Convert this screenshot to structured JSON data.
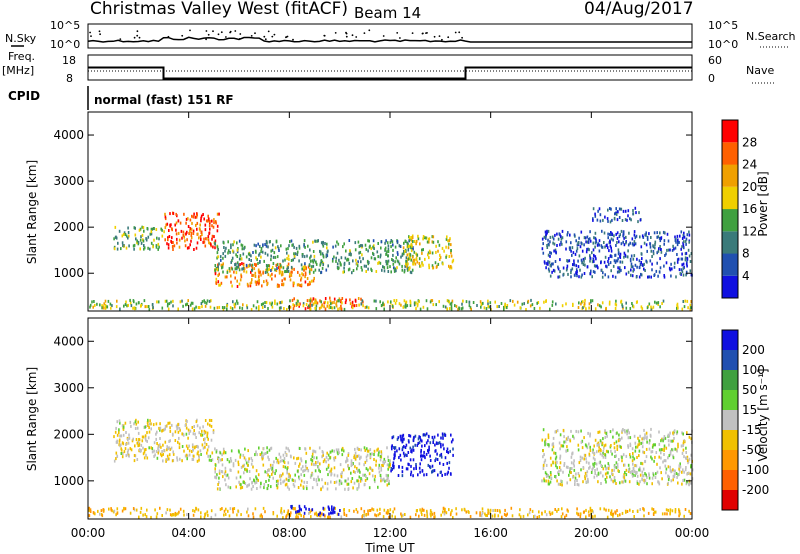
{
  "header": {
    "station": "Christmas Valley West (fitACF)",
    "beam": "Beam 14",
    "date": "04/Aug/2017"
  },
  "left_labels": {
    "nsky": "N.Sky",
    "freq_line1": "Freq.",
    "freq_line2": "[MHz]",
    "cpid": "CPID"
  },
  "right_labels": {
    "nsearch": "N.Search",
    "nave": "Nave"
  },
  "cpid_text": "normal (fast) 151 RF",
  "noise_panel": {
    "left_ticks": [
      "10^5",
      "10^0"
    ],
    "right_ticks": [
      "10^5",
      "10^0"
    ]
  },
  "freq_panel": {
    "left_ticks": [
      "18",
      "8"
    ],
    "right_ticks": [
      "60",
      "0"
    ]
  },
  "colors": {
    "power": [
      "#1010e0",
      "#2050b0",
      "#3a7a7a",
      "#40a040",
      "#f0d000",
      "#f0a000",
      "#ff6000",
      "#ff0000"
    ],
    "velocity": [
      "#e00000",
      "#ff6000",
      "#ff9800",
      "#f0c000",
      "#c0c0c0",
      "#60d030",
      "#40a040",
      "#2050b0",
      "#1010e0"
    ]
  },
  "chart_data": {
    "type": "heatmap",
    "x_axis": {
      "label": "Time UT",
      "ticks": [
        "00:00",
        "04:00",
        "08:00",
        "12:00",
        "16:00",
        "20:00",
        "00:00"
      ],
      "range_hours": [
        0,
        24
      ]
    },
    "y_axis": {
      "label": "Slant Range [km]",
      "ticks": [
        "1000",
        "2000",
        "3000",
        "4000"
      ],
      "range_km": [
        180,
        4500
      ]
    },
    "panels": [
      {
        "name": "power",
        "colorbar_label": "Power [dB]",
        "colorbar_ticks": [
          "4",
          "8",
          "12",
          "16",
          "20",
          "24",
          "28"
        ],
        "scale": [
          0,
          32
        ]
      },
      {
        "name": "velocity",
        "colorbar_label": "Velocity [m s⁻¹]",
        "colorbar_ticks": [
          "200",
          "100",
          "50",
          "15",
          "-15",
          "-50",
          "-100",
          "-200"
        ],
        "scale": [
          -250,
          250
        ]
      }
    ],
    "frequency_mhz": [
      {
        "from_hour": 0,
        "to_hour": 3,
        "value": 13
      },
      {
        "from_hour": 3,
        "to_hour": 15,
        "value": 8.6
      },
      {
        "from_hour": 15,
        "to_hour": 24,
        "value": 13
      }
    ],
    "echo_regions_power": [
      {
        "t0": 3.0,
        "t1": 5.2,
        "r0": 1500,
        "r1": 2300,
        "level": 27
      },
      {
        "t0": 1.0,
        "t1": 3.0,
        "r0": 1500,
        "r1": 2000,
        "level": 14
      },
      {
        "t0": 5.0,
        "t1": 9.0,
        "r0": 700,
        "r1": 1200,
        "level": 24
      },
      {
        "t0": 5.0,
        "t1": 13.0,
        "r0": 1000,
        "r1": 1700,
        "level": 12
      },
      {
        "t0": 12.5,
        "t1": 14.5,
        "r0": 1100,
        "r1": 1800,
        "level": 18
      },
      {
        "t0": 8.0,
        "t1": 11.0,
        "r0": 200,
        "r1": 450,
        "level": 26
      },
      {
        "t0": 0.0,
        "t1": 24.0,
        "r0": 200,
        "r1": 400,
        "level": 16
      },
      {
        "t0": 18.0,
        "t1": 24.0,
        "r0": 900,
        "r1": 1900,
        "level": 6
      },
      {
        "t0": 20.0,
        "t1": 22.0,
        "r0": 2100,
        "r1": 2400,
        "level": 5
      }
    ],
    "echo_regions_velocity": [
      {
        "t0": 1.0,
        "t1": 5.0,
        "r0": 1400,
        "r1": 2300,
        "vel": -10
      },
      {
        "t0": 5.0,
        "t1": 12.0,
        "r0": 800,
        "r1": 1700,
        "vel": 0
      },
      {
        "t0": 12.0,
        "t1": 14.5,
        "r0": 1100,
        "r1": 2000,
        "vel": 220
      },
      {
        "t0": 0.0,
        "t1": 24.0,
        "r0": 200,
        "r1": 400,
        "vel": -40
      },
      {
        "t0": 8.0,
        "t1": 10.0,
        "r0": 250,
        "r1": 450,
        "vel": 220
      },
      {
        "t0": 18.0,
        "t1": 24.0,
        "r0": 900,
        "r1": 2100,
        "vel": 0
      }
    ]
  }
}
